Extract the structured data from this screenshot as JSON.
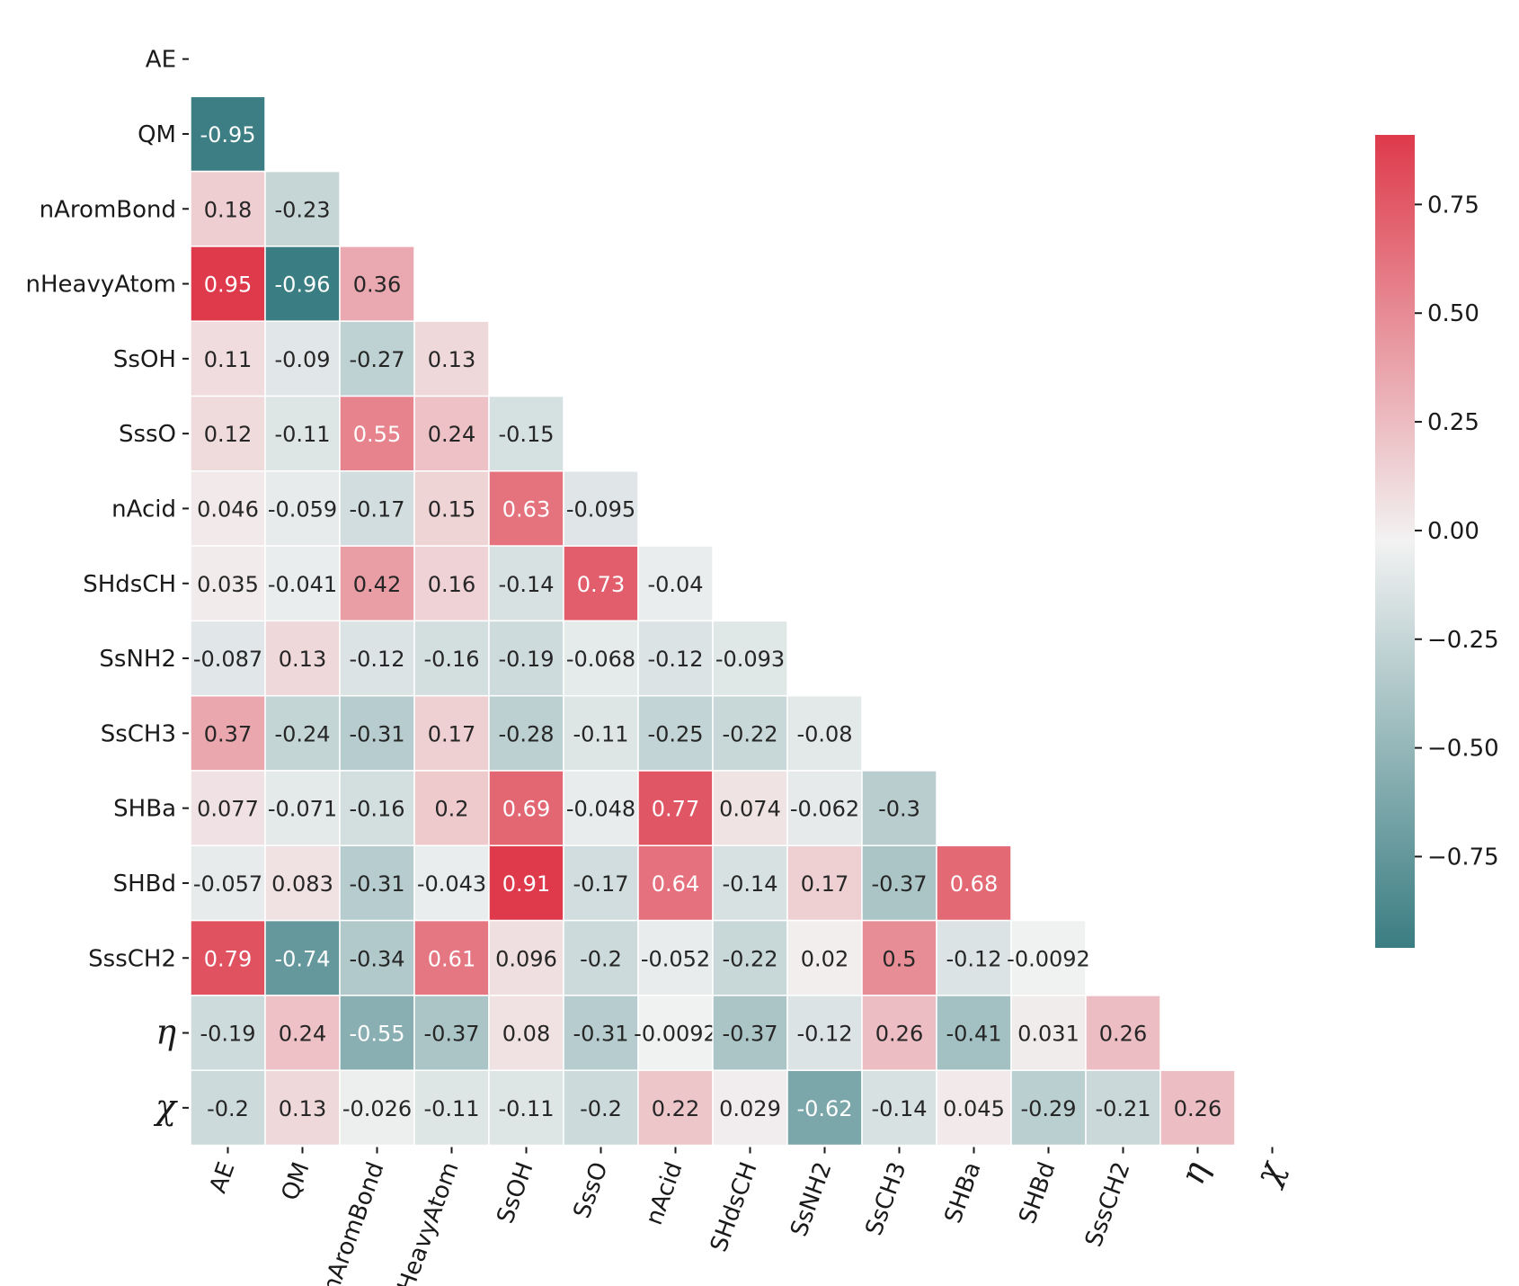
{
  "chart_data": {
    "type": "heatmap",
    "title": "",
    "xlabel": "",
    "ylabel": "",
    "mask": "upper-triangle-including-diagonal",
    "row_labels": [
      "AE",
      "QM",
      "nAromBond",
      "nHeavyAtom",
      "SsOH",
      "SssO",
      "nAcid",
      "SHdsCH",
      "SsNH2",
      "SsCH3",
      "SHBa",
      "SHBd",
      "SssCH2",
      "η",
      "χ"
    ],
    "col_labels": [
      "AE",
      "QM",
      "nAromBond",
      "nHeavyAtom",
      "SsOH",
      "SssO",
      "nAcid",
      "SHdsCH",
      "SsNH2",
      "SsCH3",
      "SHBa",
      "SHBd",
      "SssCH2",
      "η",
      "χ"
    ],
    "rows": [
      [],
      [
        "-0.95"
      ],
      [
        "0.18",
        "-0.23"
      ],
      [
        "0.95",
        "-0.96",
        "0.36"
      ],
      [
        "0.11",
        "-0.09",
        "-0.27",
        "0.13"
      ],
      [
        "0.12",
        "-0.11",
        "0.55",
        "0.24",
        "-0.15"
      ],
      [
        "0.046",
        "-0.059",
        "-0.17",
        "0.15",
        "0.63",
        "-0.095"
      ],
      [
        "0.035",
        "-0.041",
        "0.42",
        "0.16",
        "-0.14",
        "0.73",
        "-0.04"
      ],
      [
        "-0.087",
        "0.13",
        "-0.12",
        "-0.16",
        "-0.19",
        "-0.068",
        "-0.12",
        "-0.093"
      ],
      [
        "0.37",
        "-0.24",
        "-0.31",
        "0.17",
        "-0.28",
        "-0.11",
        "-0.25",
        "-0.22",
        "-0.08"
      ],
      [
        "0.077",
        "-0.071",
        "-0.16",
        "0.2",
        "0.69",
        "-0.048",
        "0.77",
        "0.074",
        "-0.062",
        "-0.3"
      ],
      [
        "-0.057",
        "0.083",
        "-0.31",
        "-0.043",
        "0.91",
        "-0.17",
        "0.64",
        "-0.14",
        "0.17",
        "-0.37",
        "0.68"
      ],
      [
        "0.79",
        "-0.74",
        "-0.34",
        "0.61",
        "0.096",
        "-0.2",
        "-0.052",
        "-0.22",
        "0.02",
        "0.5",
        "-0.12",
        "-0.0092"
      ],
      [
        "-0.19",
        "0.24",
        "-0.55",
        "-0.37",
        "0.08",
        "-0.31",
        "-0.0092",
        "-0.37",
        "-0.12",
        "0.26",
        "-0.41",
        "0.031",
        "0.26"
      ],
      [
        "-0.2",
        "0.13",
        "-0.026",
        "-0.11",
        "-0.11",
        "-0.2",
        "0.22",
        "0.029",
        "-0.62",
        "-0.14",
        "0.045",
        "-0.29",
        "-0.21",
        "0.26"
      ]
    ],
    "vmin": -0.96,
    "vmax": 0.91,
    "colormap": {
      "low": "#3a7d82",
      "mid": "#f2f2f2",
      "high": "#de3a4b"
    },
    "colorbar": {
      "ticks": [
        0.75,
        0.5,
        0.25,
        0.0,
        -0.25,
        -0.5,
        -0.75
      ],
      "tick_labels": [
        "0.75",
        "0.50",
        "0.25",
        "0.00",
        "−0.25",
        "−0.50",
        "−0.75"
      ]
    }
  }
}
